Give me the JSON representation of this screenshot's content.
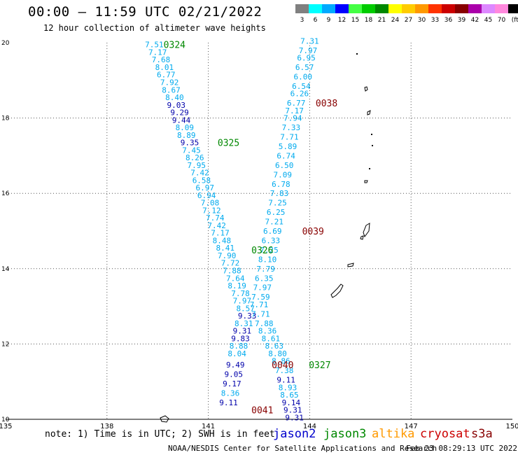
{
  "header": {
    "title": "00:00 – 11:59 UTC 02/21/2022",
    "subtitle": "12 hour collection of altimeter wave heights"
  },
  "colorbar": {
    "labels": [
      "3",
      "6",
      "9",
      "12",
      "15",
      "18",
      "21",
      "24",
      "27",
      "30",
      "33",
      "36",
      "39",
      "42",
      "45",
      "70",
      "(ft)"
    ],
    "colors": [
      "#808080",
      "#00ffff",
      "#00aaff",
      "#0000ff",
      "#44ff44",
      "#00cc00",
      "#008800",
      "#ffff00",
      "#ffcc00",
      "#ff9900",
      "#ff3300",
      "#cc0000",
      "#880000",
      "#aa00aa",
      "#dd88ff",
      "#ff88dd",
      "#000000"
    ]
  },
  "footer": {
    "note": "note: 1) Time is in UTC; 2) SWH is in feet",
    "credit": "NOAA/NESDIS Center for Satellite Applications and Research",
    "timestamp": "Feb 23 08:29:13 UTC 2022",
    "satellites": [
      {
        "name": "jason2",
        "color": "#0000cc"
      },
      {
        "name": "jason3",
        "color": "#008800"
      },
      {
        "name": "altika",
        "color": "#ff9900"
      },
      {
        "name": "cryosat",
        "color": "#cc0000"
      },
      {
        "name": "s3a",
        "color": "#880000"
      }
    ]
  },
  "chart_data": {
    "type": "scatter",
    "xlim": [
      135,
      150
    ],
    "ylim": [
      10,
      20
    ],
    "x_ticks": [
      135,
      138,
      141,
      144,
      147,
      150
    ],
    "y_ticks": [
      10,
      12,
      14,
      16,
      18,
      20
    ],
    "grid": true,
    "colors": {
      "light": "#00aaee",
      "dark": "#0000aa",
      "green": "#008800",
      "maroon": "#880000"
    },
    "pass_labels": [
      {
        "text": "0324",
        "lon": 140.0,
        "lat": 19.95,
        "color": "green"
      },
      {
        "text": "0325",
        "lon": 141.6,
        "lat": 17.35,
        "color": "green"
      },
      {
        "text": "0326",
        "lon": 142.6,
        "lat": 14.5,
        "color": "green"
      },
      {
        "text": "0327",
        "lon": 144.3,
        "lat": 11.45,
        "color": "green"
      },
      {
        "text": "0038",
        "lon": 144.5,
        "lat": 18.4,
        "color": "maroon"
      },
      {
        "text": "0039",
        "lon": 144.1,
        "lat": 15.0,
        "color": "maroon"
      },
      {
        "text": "0040",
        "lon": 143.2,
        "lat": 11.45,
        "color": "maroon"
      },
      {
        "text": "0041",
        "lon": 142.6,
        "lat": 10.25,
        "color": "maroon"
      }
    ],
    "tracks": [
      {
        "name": "pass 0324/0325/0326",
        "points": [
          {
            "lon": 139.4,
            "lat": 19.95,
            "v": "7.51",
            "c": "light"
          },
          {
            "lon": 139.5,
            "lat": 19.75,
            "v": "7.17",
            "c": "light"
          },
          {
            "lon": 139.6,
            "lat": 19.55,
            "v": "7.68",
            "c": "light"
          },
          {
            "lon": 139.7,
            "lat": 19.35,
            "v": "8.01",
            "c": "light"
          },
          {
            "lon": 139.75,
            "lat": 19.15,
            "v": "6.77",
            "c": "light"
          },
          {
            "lon": 139.85,
            "lat": 18.95,
            "v": "7.92",
            "c": "light"
          },
          {
            "lon": 139.9,
            "lat": 18.75,
            "v": "8.67",
            "c": "light"
          },
          {
            "lon": 140.0,
            "lat": 18.55,
            "v": "8.40",
            "c": "light"
          },
          {
            "lon": 140.05,
            "lat": 18.35,
            "v": "9.03",
            "c": "dark"
          },
          {
            "lon": 140.15,
            "lat": 18.15,
            "v": "9.29",
            "c": "dark"
          },
          {
            "lon": 140.2,
            "lat": 17.95,
            "v": "9.44",
            "c": "dark"
          },
          {
            "lon": 140.3,
            "lat": 17.75,
            "v": "8.09",
            "c": "light"
          },
          {
            "lon": 140.35,
            "lat": 17.55,
            "v": "8.89",
            "c": "light"
          },
          {
            "lon": 140.45,
            "lat": 17.35,
            "v": "9.35",
            "c": "dark"
          },
          {
            "lon": 140.5,
            "lat": 17.15,
            "v": "7.45",
            "c": "light"
          },
          {
            "lon": 140.6,
            "lat": 16.95,
            "v": "8.26",
            "c": "light"
          },
          {
            "lon": 140.65,
            "lat": 16.75,
            "v": "7.95",
            "c": "light"
          },
          {
            "lon": 140.75,
            "lat": 16.55,
            "v": "7.42",
            "c": "light"
          },
          {
            "lon": 140.8,
            "lat": 16.35,
            "v": "6.58",
            "c": "light"
          },
          {
            "lon": 140.9,
            "lat": 16.15,
            "v": "6.97",
            "c": "light"
          },
          {
            "lon": 140.95,
            "lat": 15.95,
            "v": "6.94",
            "c": "light"
          },
          {
            "lon": 141.05,
            "lat": 15.75,
            "v": "7.08",
            "c": "light"
          },
          {
            "lon": 141.1,
            "lat": 15.55,
            "v": "7.12",
            "c": "light"
          },
          {
            "lon": 141.2,
            "lat": 15.35,
            "v": "7.74",
            "c": "light"
          },
          {
            "lon": 141.25,
            "lat": 15.15,
            "v": "7.42",
            "c": "light"
          },
          {
            "lon": 141.35,
            "lat": 14.95,
            "v": "7.17",
            "c": "light"
          },
          {
            "lon": 141.4,
            "lat": 14.75,
            "v": "8.48",
            "c": "light"
          },
          {
            "lon": 141.5,
            "lat": 14.55,
            "v": "8.41",
            "c": "light"
          },
          {
            "lon": 141.55,
            "lat": 14.35,
            "v": "7.90",
            "c": "light"
          },
          {
            "lon": 141.65,
            "lat": 14.15,
            "v": "7.72",
            "c": "light"
          },
          {
            "lon": 141.7,
            "lat": 13.95,
            "v": "7.88",
            "c": "light"
          },
          {
            "lon": 141.8,
            "lat": 13.75,
            "v": "7.64",
            "c": "light"
          },
          {
            "lon": 141.85,
            "lat": 13.55,
            "v": "8.19",
            "c": "light"
          },
          {
            "lon": 141.95,
            "lat": 13.35,
            "v": "7.78",
            "c": "light"
          },
          {
            "lon": 142.0,
            "lat": 13.15,
            "v": "7.97",
            "c": "light"
          },
          {
            "lon": 142.1,
            "lat": 12.95,
            "v": "8.57",
            "c": "light"
          },
          {
            "lon": 142.15,
            "lat": 12.75,
            "v": "9.33",
            "c": "dark"
          },
          {
            "lon": 142.05,
            "lat": 12.55,
            "v": "8.31",
            "c": "light"
          },
          {
            "lon": 142.0,
            "lat": 12.35,
            "v": "9.31",
            "c": "dark"
          },
          {
            "lon": 141.95,
            "lat": 12.15,
            "v": "9.83",
            "c": "dark"
          },
          {
            "lon": 141.9,
            "lat": 11.95,
            "v": "8.88",
            "c": "light"
          },
          {
            "lon": 141.85,
            "lat": 11.75,
            "v": "8.04",
            "c": "light"
          },
          {
            "lon": 141.8,
            "lat": 11.45,
            "v": "9.49",
            "c": "dark"
          },
          {
            "lon": 141.75,
            "lat": 11.2,
            "v": "9.05",
            "c": "dark"
          },
          {
            "lon": 141.7,
            "lat": 10.95,
            "v": "9.17",
            "c": "dark"
          },
          {
            "lon": 141.65,
            "lat": 10.7,
            "v": "8.36",
            "c": "light"
          },
          {
            "lon": 141.6,
            "lat": 10.45,
            "v": "9.11",
            "c": "dark"
          }
        ]
      },
      {
        "name": "pass 0038/0039/0040/0041/0327",
        "points": [
          {
            "lon": 144.0,
            "lat": 20.05,
            "v": "7.31",
            "c": "light"
          },
          {
            "lon": 143.95,
            "lat": 19.8,
            "v": "7.97",
            "c": "light"
          },
          {
            "lon": 143.9,
            "lat": 19.6,
            "v": "6.95",
            "c": "light"
          },
          {
            "lon": 143.85,
            "lat": 19.35,
            "v": "6.57",
            "c": "light"
          },
          {
            "lon": 143.8,
            "lat": 19.1,
            "v": "6.00",
            "c": "light"
          },
          {
            "lon": 143.75,
            "lat": 18.85,
            "v": "6.54",
            "c": "light"
          },
          {
            "lon": 143.7,
            "lat": 18.65,
            "v": "6.26",
            "c": "light"
          },
          {
            "lon": 143.6,
            "lat": 18.4,
            "v": "6.77",
            "c": "light"
          },
          {
            "lon": 143.55,
            "lat": 18.2,
            "v": "7.17",
            "c": "light"
          },
          {
            "lon": 143.5,
            "lat": 18.0,
            "v": "7.94",
            "c": "light"
          },
          {
            "lon": 143.45,
            "lat": 17.75,
            "v": "7.33",
            "c": "light"
          },
          {
            "lon": 143.4,
            "lat": 17.5,
            "v": "7.71",
            "c": "light"
          },
          {
            "lon": 143.35,
            "lat": 17.25,
            "v": "5.89",
            "c": "light"
          },
          {
            "lon": 143.3,
            "lat": 17.0,
            "v": "6.74",
            "c": "light"
          },
          {
            "lon": 143.25,
            "lat": 16.75,
            "v": "6.50",
            "c": "light"
          },
          {
            "lon": 143.2,
            "lat": 16.5,
            "v": "7.09",
            "c": "light"
          },
          {
            "lon": 143.15,
            "lat": 16.25,
            "v": "6.78",
            "c": "light"
          },
          {
            "lon": 143.1,
            "lat": 16.0,
            "v": "7.83",
            "c": "light"
          },
          {
            "lon": 143.05,
            "lat": 15.75,
            "v": "7.25",
            "c": "light"
          },
          {
            "lon": 143.0,
            "lat": 15.5,
            "v": "6.25",
            "c": "light"
          },
          {
            "lon": 142.95,
            "lat": 15.25,
            "v": "7.21",
            "c": "light"
          },
          {
            "lon": 142.9,
            "lat": 15.0,
            "v": "6.69",
            "c": "light"
          },
          {
            "lon": 142.85,
            "lat": 14.75,
            "v": "6.33",
            "c": "light"
          },
          {
            "lon": 142.8,
            "lat": 14.5,
            "v": "7.25",
            "c": "light"
          },
          {
            "lon": 142.75,
            "lat": 14.25,
            "v": "8.10",
            "c": "light"
          },
          {
            "lon": 142.7,
            "lat": 14.0,
            "v": "7.79",
            "c": "light"
          },
          {
            "lon": 142.65,
            "lat": 13.75,
            "v": "6.35",
            "c": "light"
          },
          {
            "lon": 142.6,
            "lat": 13.5,
            "v": "7.97",
            "c": "light"
          },
          {
            "lon": 142.55,
            "lat": 13.25,
            "v": "7.59",
            "c": "light"
          },
          {
            "lon": 142.5,
            "lat": 13.05,
            "v": "7.71",
            "c": "light"
          },
          {
            "lon": 142.55,
            "lat": 12.8,
            "v": "7.71",
            "c": "light"
          },
          {
            "lon": 142.65,
            "lat": 12.55,
            "v": "7.88",
            "c": "light"
          },
          {
            "lon": 142.75,
            "lat": 12.35,
            "v": "8.36",
            "c": "light"
          },
          {
            "lon": 142.85,
            "lat": 12.15,
            "v": "8.61",
            "c": "light"
          },
          {
            "lon": 142.95,
            "lat": 11.95,
            "v": "8.63",
            "c": "light"
          },
          {
            "lon": 143.05,
            "lat": 11.75,
            "v": "8.80",
            "c": "light"
          },
          {
            "lon": 143.15,
            "lat": 11.55,
            "v": "8.86",
            "c": "light"
          },
          {
            "lon": 143.25,
            "lat": 11.3,
            "v": "7.38",
            "c": "light"
          },
          {
            "lon": 143.3,
            "lat": 11.05,
            "v": "9.11",
            "c": "dark"
          },
          {
            "lon": 143.35,
            "lat": 10.85,
            "v": "8.93",
            "c": "light"
          },
          {
            "lon": 143.4,
            "lat": 10.65,
            "v": "8.65",
            "c": "light"
          },
          {
            "lon": 143.45,
            "lat": 10.45,
            "v": "9.14",
            "c": "dark"
          },
          {
            "lon": 143.5,
            "lat": 10.25,
            "v": "9.31",
            "c": "dark"
          },
          {
            "lon": 143.55,
            "lat": 10.05,
            "v": "9.31",
            "c": "dark"
          }
        ]
      }
    ]
  }
}
